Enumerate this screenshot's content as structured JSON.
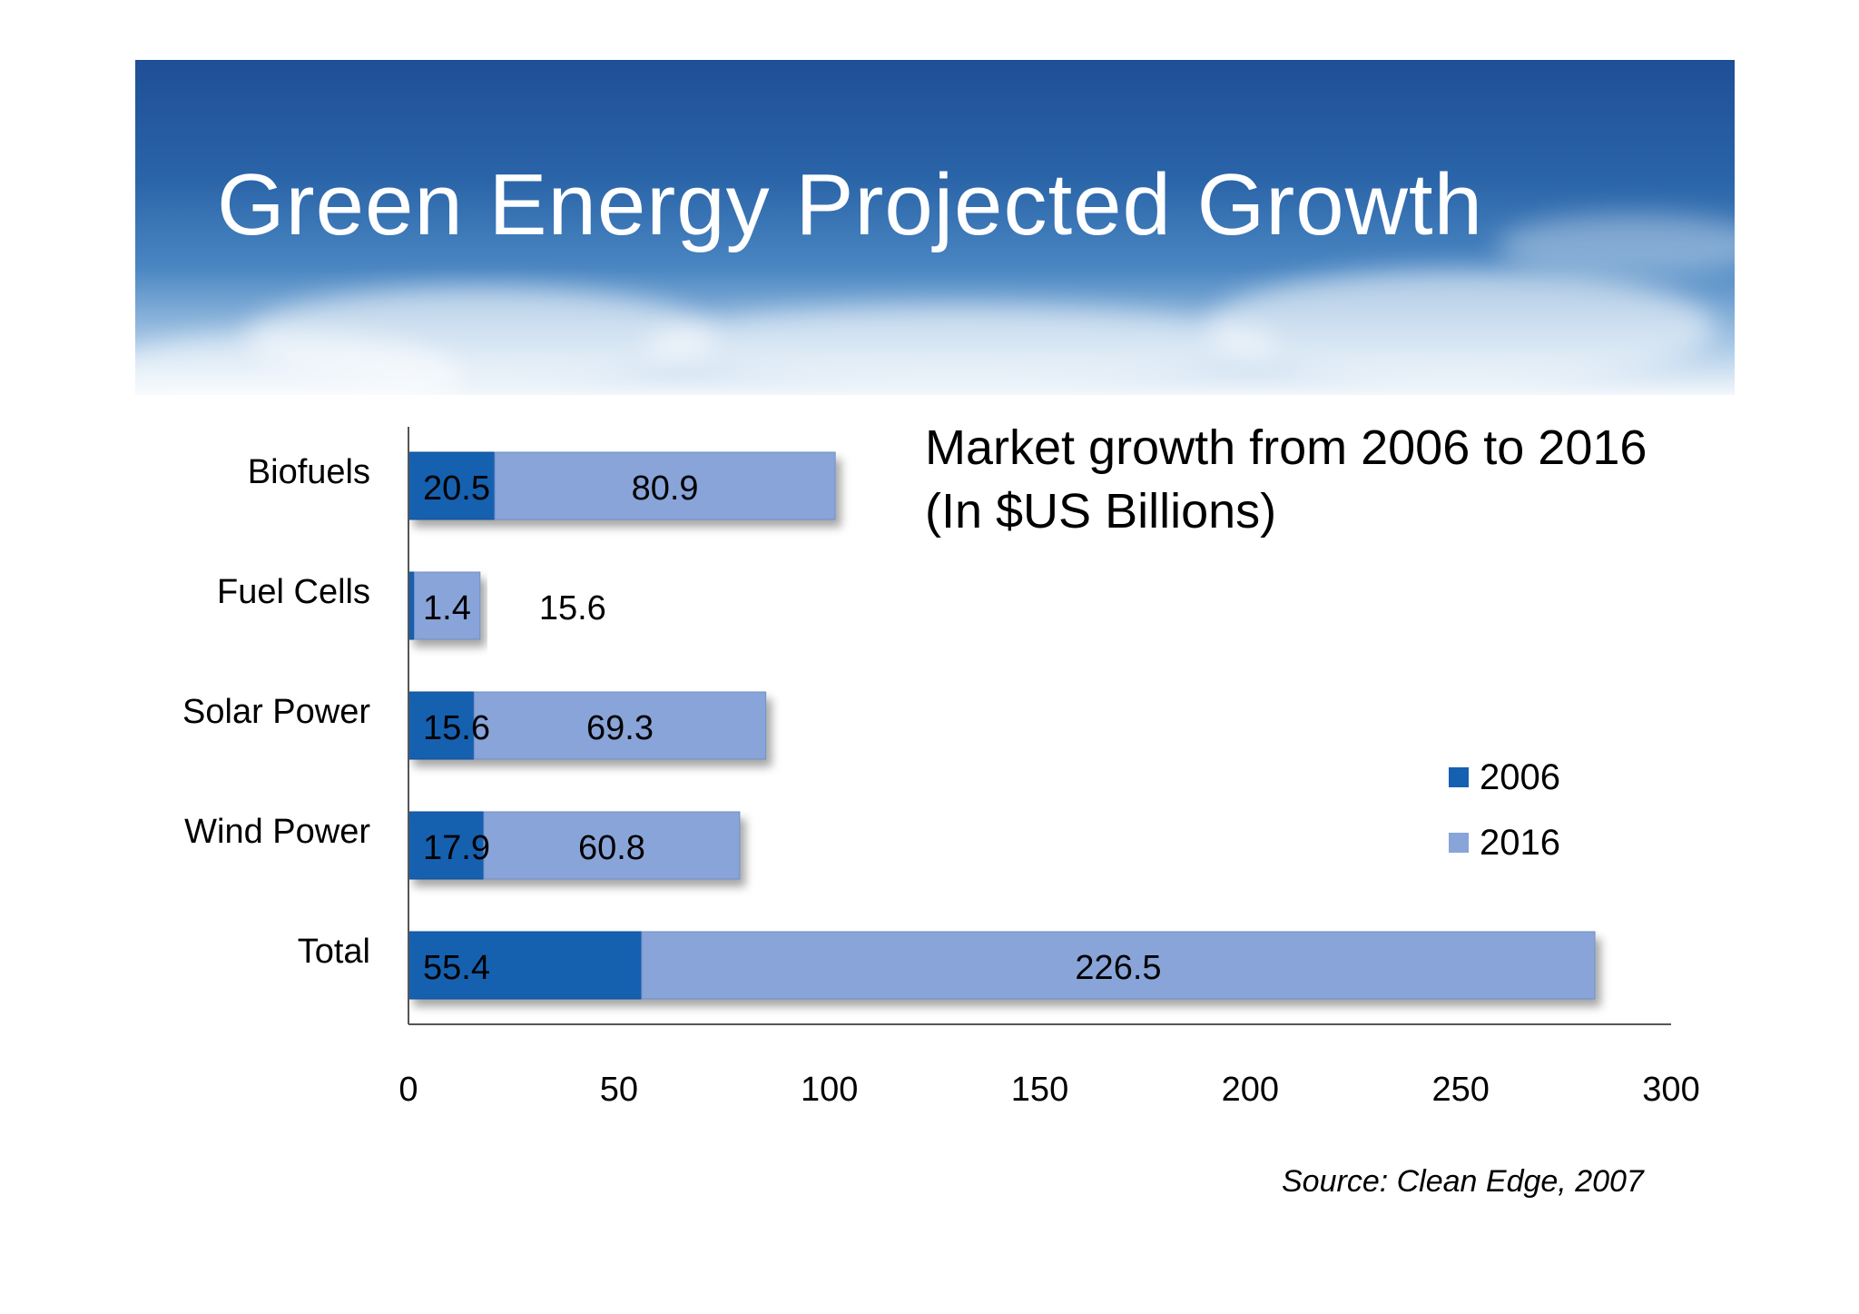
{
  "title": "Green Energy Projected Growth",
  "source": "Source: Clean Edge, 2007",
  "colors": {
    "s2006": "#1560b0",
    "s2016": "#88a4d8"
  },
  "chart_data": {
    "type": "bar",
    "orientation": "horizontal",
    "stacked": true,
    "title": "Market growth from 2006 to 2016",
    "subtitle": "(In $US Billions)",
    "categories": [
      "Biofuels",
      "Fuel Cells",
      "Solar Power",
      "Wind Power",
      "Total"
    ],
    "series": [
      {
        "name": "2006",
        "values": [
          20.5,
          1.4,
          15.6,
          17.9,
          55.4
        ]
      },
      {
        "name": "2016",
        "values": [
          80.9,
          15.6,
          69.3,
          60.8,
          226.5
        ]
      }
    ],
    "xlim": [
      0,
      300
    ],
    "xticks": [
      0,
      50,
      100,
      150,
      200,
      250,
      300
    ],
    "legend": "right",
    "grid": false
  }
}
